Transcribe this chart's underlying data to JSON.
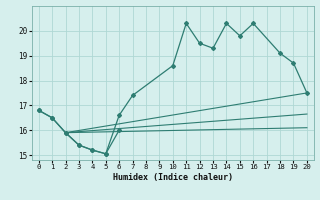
{
  "xlabel": "Humidex (Indice chaleur)",
  "bg_color": "#d6efed",
  "grid_color": "#afd8d4",
  "line_color": "#2e7d72",
  "xlim": [
    -0.5,
    20.5
  ],
  "ylim": [
    14.8,
    21.0
  ],
  "yticks": [
    15,
    16,
    17,
    18,
    19,
    20
  ],
  "xticks": [
    0,
    1,
    2,
    3,
    4,
    5,
    6,
    7,
    8,
    9,
    10,
    11,
    12,
    13,
    14,
    15,
    16,
    17,
    18,
    19,
    20
  ],
  "main_x": [
    0,
    1,
    2,
    3,
    4,
    5,
    6,
    7,
    10,
    11,
    12,
    13,
    14,
    15,
    16,
    18,
    19,
    20
  ],
  "main_y": [
    16.8,
    16.5,
    15.9,
    15.4,
    15.2,
    15.05,
    16.6,
    17.4,
    18.6,
    20.3,
    19.5,
    19.3,
    20.3,
    19.8,
    20.3,
    19.1,
    18.7,
    17.5
  ],
  "second_x": [
    0,
    1,
    2,
    3,
    4,
    5,
    6
  ],
  "second_y": [
    16.8,
    16.5,
    15.9,
    15.4,
    15.2,
    15.05,
    16.0
  ],
  "trend1_x": [
    2,
    20
  ],
  "trend1_y": [
    15.9,
    17.5
  ],
  "trend2_x": [
    2,
    20
  ],
  "trend2_y": [
    15.9,
    16.65
  ],
  "trend3_x": [
    2,
    20
  ],
  "trend3_y": [
    15.9,
    16.1
  ]
}
